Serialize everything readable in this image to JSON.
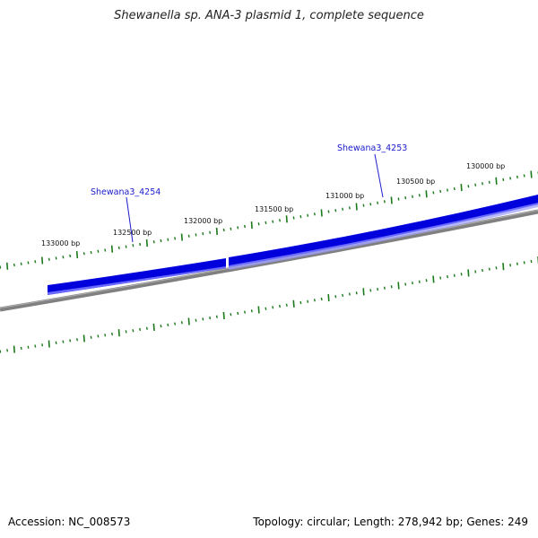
{
  "title": "Shewanella sp. ANA-3 plasmid 1, complete sequence",
  "footer": {
    "accession": "Accession: NC_008573",
    "summary": "Topology: circular; Length: 278,942 bp; Genes: 249"
  },
  "colors": {
    "gene_fill": "#0000dd",
    "gene_light": "#5a5aff",
    "backbone": "#808080",
    "ticks": "#1a7a1a",
    "gene_label": "#1a1acc"
  },
  "tick_labels": [
    "130000 bp",
    "130500 bp",
    "131000 bp",
    "131500 bp",
    "132000 bp",
    "132500 bp",
    "133000 bp"
  ],
  "genes": [
    {
      "label": "Shewana3_4253"
    },
    {
      "label": "Shewana3_4254"
    }
  ]
}
